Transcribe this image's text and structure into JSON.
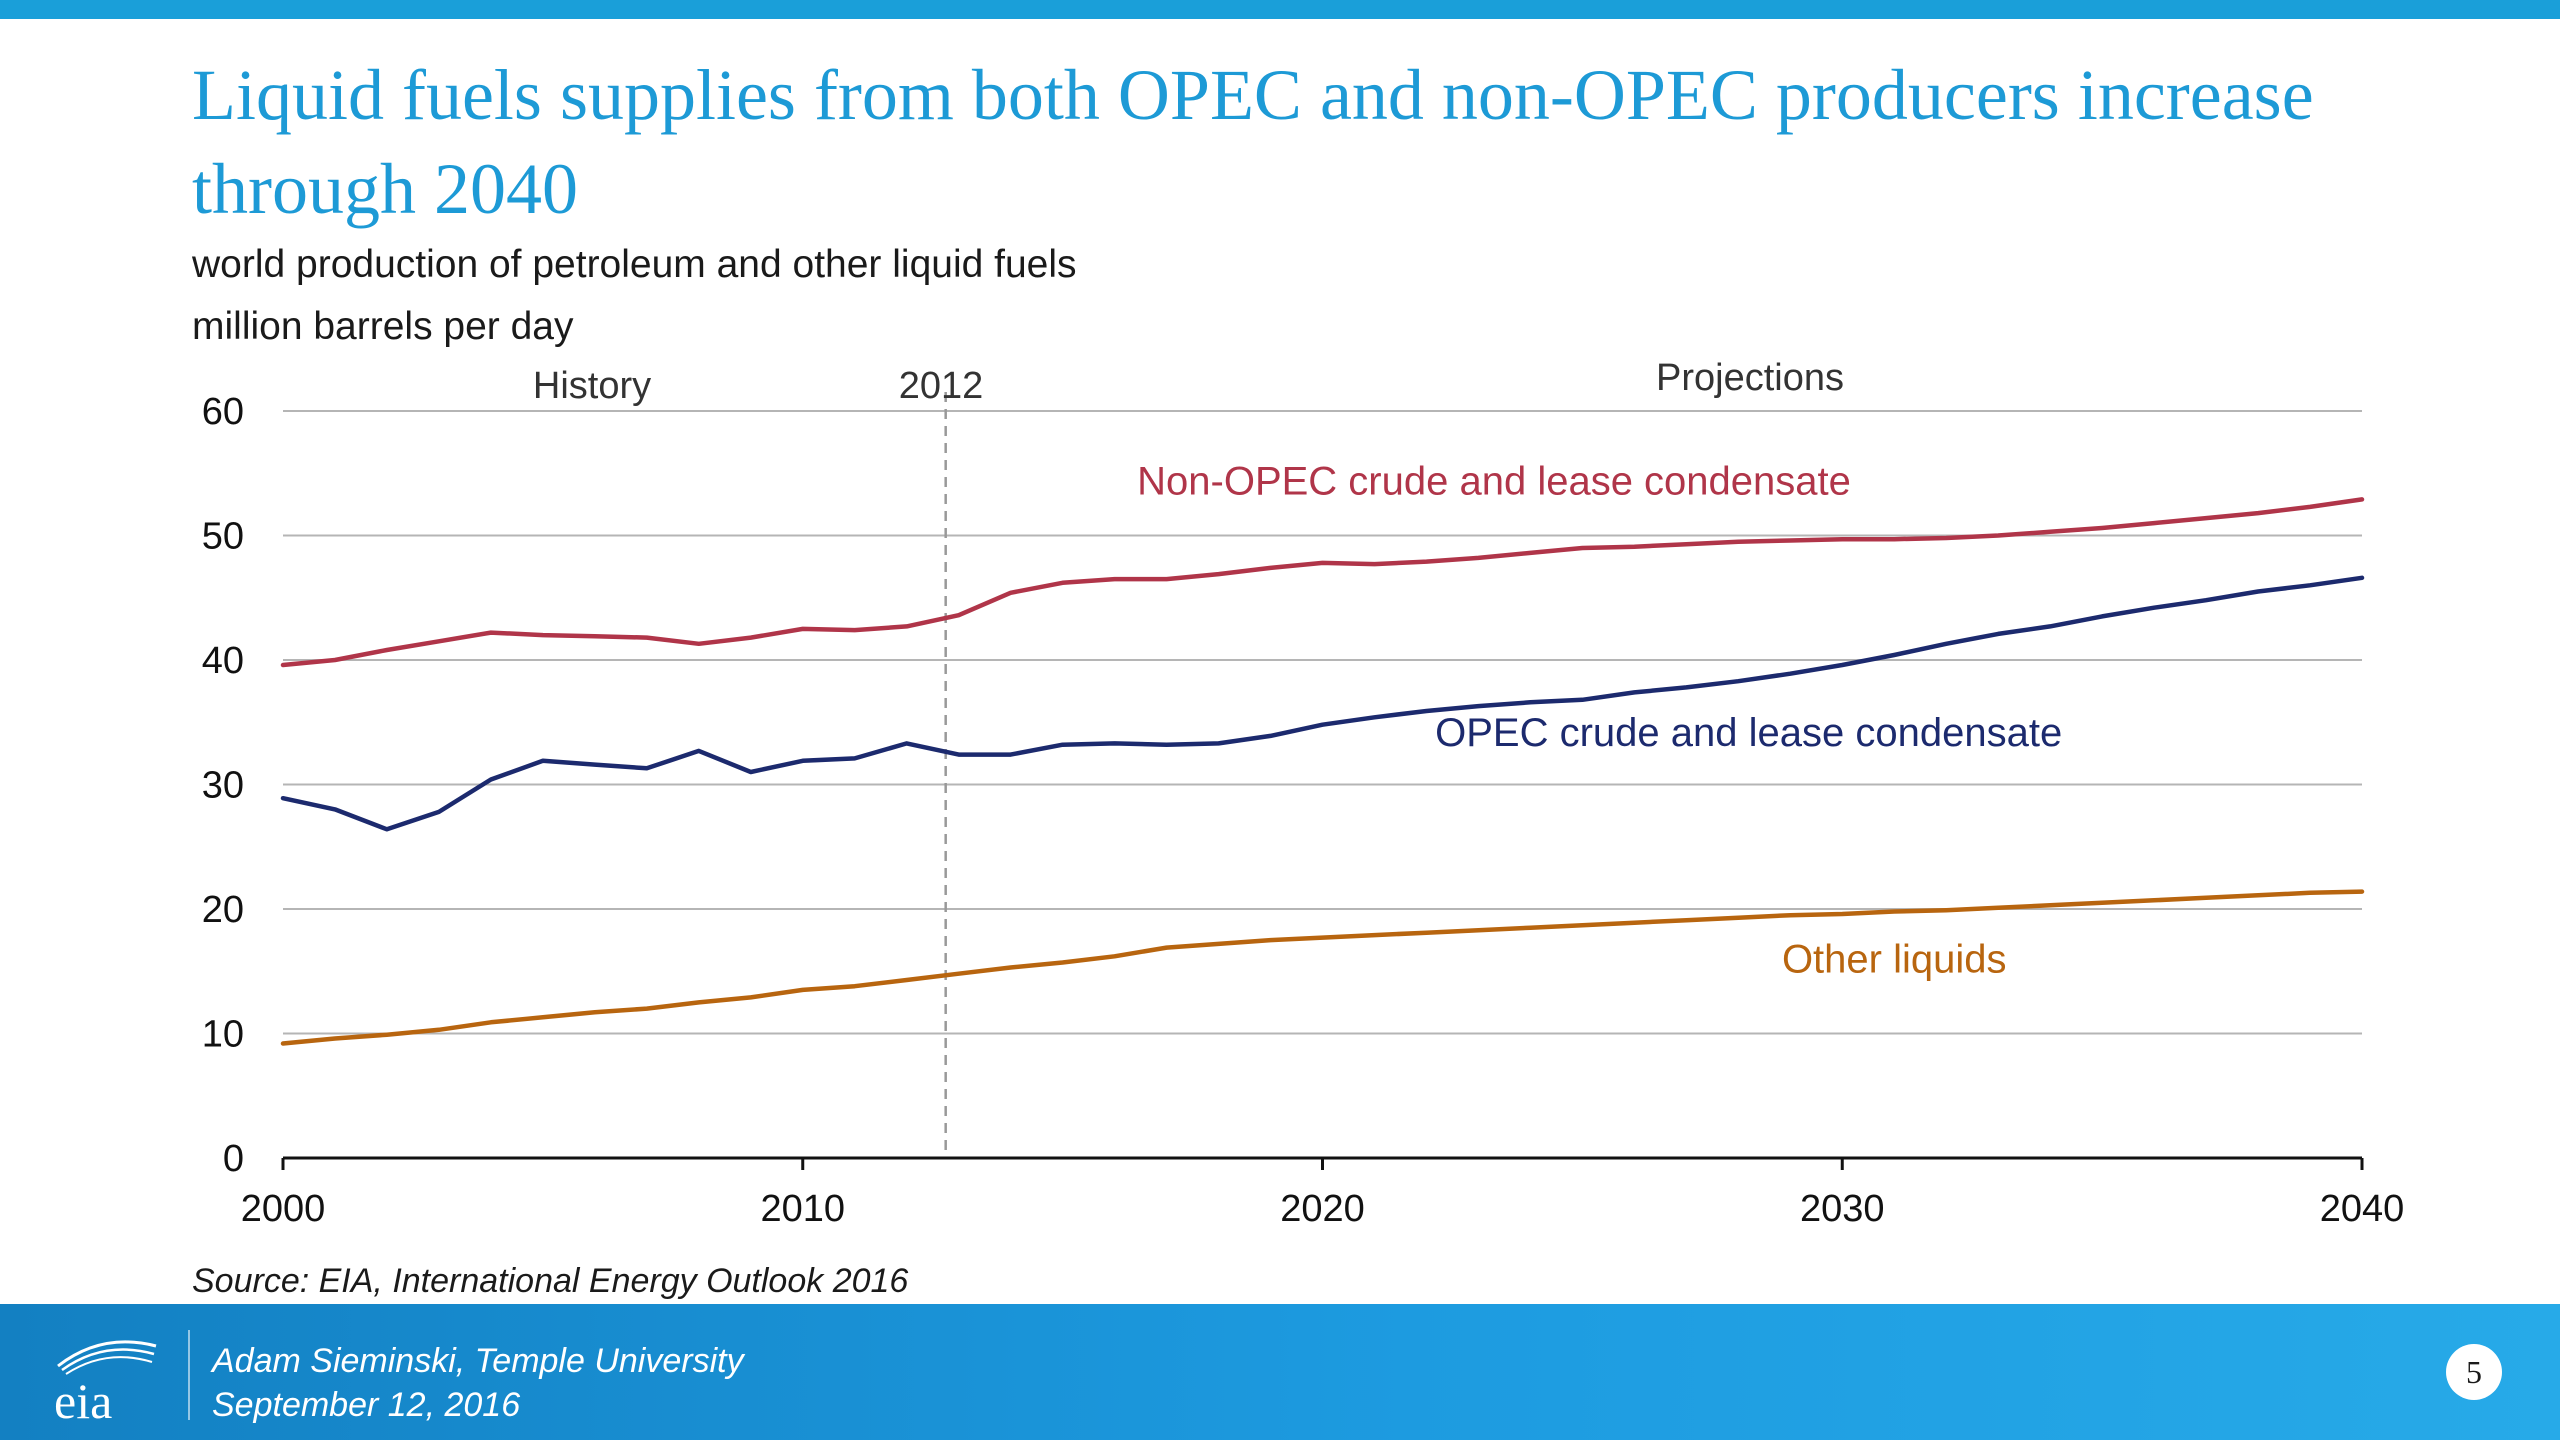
{
  "slide": {
    "title": "Liquid fuels supplies from both OPEC and non-OPEC producers increase through 2040",
    "subtitle_line1": "world production of petroleum and other liquid fuels",
    "subtitle_line2": "million barrels per day",
    "source": "Source:  EIA, International Energy Outlook 2016",
    "presenter": "Adam Sieminski, Temple University",
    "date": "September 12, 2016",
    "page_number": "5",
    "logo_text": "eia"
  },
  "colors": {
    "accent": "#1d9ad6",
    "non_opec": "#b03549",
    "opec": "#1c2a6e",
    "other": "#b8650f",
    "grid": "#b5b5b5",
    "divider": "#999999"
  },
  "chart_data": {
    "type": "line",
    "title": "world production of petroleum and other liquid fuels",
    "ylabel": "million barrels per day",
    "xlabel": "",
    "xlim": [
      2000,
      2040
    ],
    "ylim": [
      0,
      60
    ],
    "x_ticks": [
      2000,
      2010,
      2020,
      2030,
      2040
    ],
    "y_ticks": [
      0,
      10,
      20,
      30,
      40,
      50,
      60
    ],
    "grid": true,
    "divider": {
      "x": 2012.75,
      "label": "2012"
    },
    "region_labels": {
      "history": "History",
      "projections": "Projections"
    },
    "series": [
      {
        "name": "Non-OPEC crude and lease condensate",
        "color_key": "non_opec",
        "label_anchor": [
          2023.3,
          53.3
        ],
        "points": [
          [
            2000,
            39.6
          ],
          [
            2001,
            40.0
          ],
          [
            2002,
            40.8
          ],
          [
            2003,
            41.5
          ],
          [
            2004,
            42.2
          ],
          [
            2005,
            42.0
          ],
          [
            2006,
            41.9
          ],
          [
            2007,
            41.8
          ],
          [
            2008,
            41.3
          ],
          [
            2009,
            41.8
          ],
          [
            2010,
            42.5
          ],
          [
            2011,
            42.4
          ],
          [
            2012,
            42.7
          ],
          [
            2013,
            43.6
          ],
          [
            2014,
            45.4
          ],
          [
            2015,
            46.2
          ],
          [
            2016,
            46.5
          ],
          [
            2017,
            46.5
          ],
          [
            2018,
            46.9
          ],
          [
            2019,
            47.4
          ],
          [
            2020,
            47.8
          ],
          [
            2021,
            47.7
          ],
          [
            2022,
            47.9
          ],
          [
            2023,
            48.2
          ],
          [
            2024,
            48.6
          ],
          [
            2025,
            49.0
          ],
          [
            2026,
            49.1
          ],
          [
            2027,
            49.3
          ],
          [
            2028,
            49.5
          ],
          [
            2029,
            49.6
          ],
          [
            2030,
            49.7
          ],
          [
            2031,
            49.7
          ],
          [
            2032,
            49.8
          ],
          [
            2033,
            50.0
          ],
          [
            2034,
            50.3
          ],
          [
            2035,
            50.6
          ],
          [
            2036,
            51.0
          ],
          [
            2037,
            51.4
          ],
          [
            2038,
            51.8
          ],
          [
            2039,
            52.3
          ],
          [
            2040,
            52.9
          ]
        ]
      },
      {
        "name": "OPEC crude and lease condensate",
        "color_key": "opec",
        "label_anchor": [
          2028.2,
          33.1
        ],
        "points": [
          [
            2000,
            28.9
          ],
          [
            2001,
            28.0
          ],
          [
            2002,
            26.4
          ],
          [
            2003,
            27.8
          ],
          [
            2004,
            30.4
          ],
          [
            2005,
            31.9
          ],
          [
            2006,
            31.6
          ],
          [
            2007,
            31.3
          ],
          [
            2008,
            32.7
          ],
          [
            2009,
            31.0
          ],
          [
            2010,
            31.9
          ],
          [
            2011,
            32.1
          ],
          [
            2012,
            33.3
          ],
          [
            2013,
            32.4
          ],
          [
            2014,
            32.4
          ],
          [
            2015,
            33.2
          ],
          [
            2016,
            33.3
          ],
          [
            2017,
            33.2
          ],
          [
            2018,
            33.3
          ],
          [
            2019,
            33.9
          ],
          [
            2020,
            34.8
          ],
          [
            2021,
            35.4
          ],
          [
            2022,
            35.9
          ],
          [
            2023,
            36.3
          ],
          [
            2024,
            36.6
          ],
          [
            2025,
            36.8
          ],
          [
            2026,
            37.4
          ],
          [
            2027,
            37.8
          ],
          [
            2028,
            38.3
          ],
          [
            2029,
            38.9
          ],
          [
            2030,
            39.6
          ],
          [
            2031,
            40.4
          ],
          [
            2032,
            41.3
          ],
          [
            2033,
            42.1
          ],
          [
            2034,
            42.7
          ],
          [
            2035,
            43.5
          ],
          [
            2036,
            44.2
          ],
          [
            2037,
            44.8
          ],
          [
            2038,
            45.5
          ],
          [
            2039,
            46.0
          ],
          [
            2040,
            46.6
          ]
        ]
      },
      {
        "name": "Other liquids",
        "color_key": "other",
        "label_anchor": [
          2031.0,
          14.9
        ],
        "points": [
          [
            2000,
            9.2
          ],
          [
            2001,
            9.6
          ],
          [
            2002,
            9.9
          ],
          [
            2003,
            10.3
          ],
          [
            2004,
            10.9
          ],
          [
            2005,
            11.3
          ],
          [
            2006,
            11.7
          ],
          [
            2007,
            12.0
          ],
          [
            2008,
            12.5
          ],
          [
            2009,
            12.9
          ],
          [
            2010,
            13.5
          ],
          [
            2011,
            13.8
          ],
          [
            2012,
            14.3
          ],
          [
            2013,
            14.8
          ],
          [
            2014,
            15.3
          ],
          [
            2015,
            15.7
          ],
          [
            2016,
            16.2
          ],
          [
            2017,
            16.9
          ],
          [
            2018,
            17.2
          ],
          [
            2019,
            17.5
          ],
          [
            2020,
            17.7
          ],
          [
            2021,
            17.9
          ],
          [
            2022,
            18.1
          ],
          [
            2023,
            18.3
          ],
          [
            2024,
            18.5
          ],
          [
            2025,
            18.7
          ],
          [
            2026,
            18.9
          ],
          [
            2027,
            19.1
          ],
          [
            2028,
            19.3
          ],
          [
            2029,
            19.5
          ],
          [
            2030,
            19.6
          ],
          [
            2031,
            19.8
          ],
          [
            2032,
            19.9
          ],
          [
            2033,
            20.1
          ],
          [
            2034,
            20.3
          ],
          [
            2035,
            20.5
          ],
          [
            2036,
            20.7
          ],
          [
            2037,
            20.9
          ],
          [
            2038,
            21.1
          ],
          [
            2039,
            21.3
          ],
          [
            2040,
            21.4
          ]
        ]
      }
    ]
  }
}
